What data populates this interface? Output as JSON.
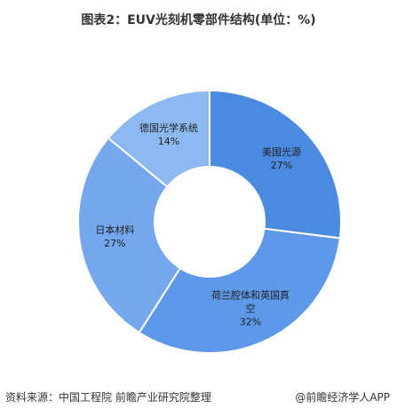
{
  "chart_data": {
    "type": "donut",
    "title": "图表2：EUV光刻机零部件结构(单位：%)",
    "categories": [
      "美国光源",
      "荷兰腔体和英国真空",
      "日本材料",
      "德国光学系统"
    ],
    "values": [
      27,
      32,
      27,
      14
    ],
    "value_labels": [
      "27%",
      "32%",
      "27%",
      "14%"
    ],
    "colors": [
      "#4a8be2",
      "#5e98e8",
      "#74a7ee",
      "#8db9f2"
    ],
    "source": "资料来源：中国工程院 前瞻产业研究院整理",
    "credit": "@前瞻经济学人APP"
  }
}
